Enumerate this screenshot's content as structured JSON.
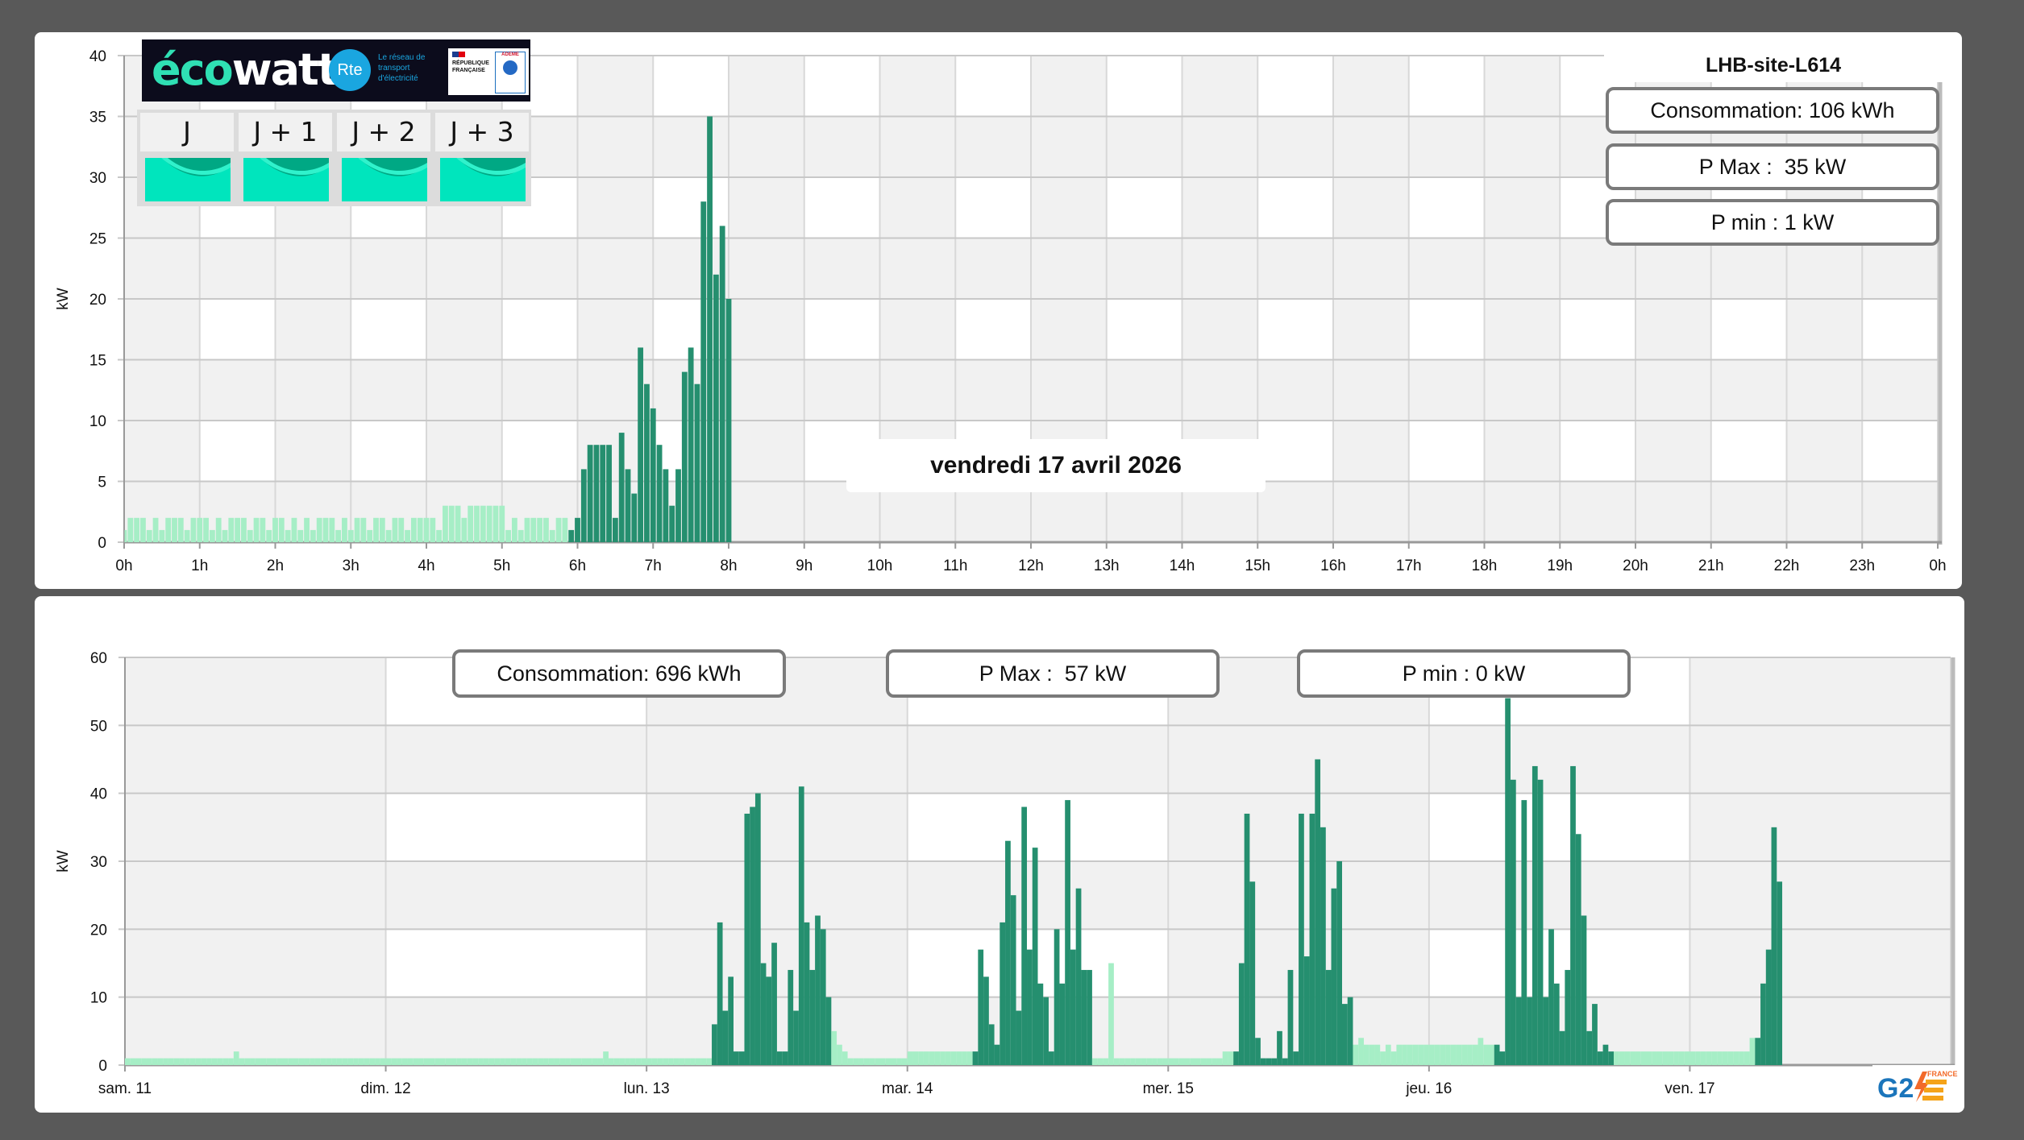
{
  "colors": {
    "background": "#595959",
    "panel": "#ffffff",
    "offpeak": "#a6eec6",
    "peak": "#258f6f",
    "grid_band": "#f1f1f1",
    "grid_line": "#c8c8c8",
    "box_border": "#7a7a7a"
  },
  "ecowatt": {
    "logo_text_1": "éco",
    "logo_text_2": "watt",
    "rte_logo": "Rte",
    "rte_caption": "Le réseau de transport d'électricité",
    "rf_caption": "RÉPUBLIQUE FRANÇAISE",
    "ademe_caption": "ADEME",
    "days": [
      {
        "label": "J",
        "signal": "green"
      },
      {
        "label": "J + 1",
        "signal": "green"
      },
      {
        "label": "J + 2",
        "signal": "green"
      },
      {
        "label": "J + 3",
        "signal": "green"
      }
    ]
  },
  "site": {
    "title": "LHB-site-L614"
  },
  "day_view": {
    "date_label": "vendredi 17 avril 2026",
    "stats": {
      "consumption": "Consommation: 106 kWh",
      "pmax": "P Max :  35 kW",
      "pmin": "P min : 1 kW"
    }
  },
  "week_view": {
    "stats": {
      "consumption": "Consommation: 696 kWh",
      "pmax": "P Max :  57 kW",
      "pmin": "P min : 0 kW"
    }
  },
  "brand": {
    "g2e_logo": "G2E FRANCE"
  },
  "chart_data": [
    {
      "type": "bar",
      "ylabel": "kW",
      "ylim": [
        0,
        40
      ],
      "yticks": [
        0,
        5,
        10,
        15,
        20,
        25,
        30,
        35,
        40
      ],
      "xticks": [
        "0h",
        "1h",
        "2h",
        "3h",
        "4h",
        "5h",
        "6h",
        "7h",
        "8h",
        "9h",
        "10h",
        "11h",
        "12h",
        "13h",
        "14h",
        "15h",
        "16h",
        "17h",
        "18h",
        "19h",
        "20h",
        "21h",
        "22h",
        "23h",
        "0h"
      ],
      "x_start": "00:00",
      "x_step_minutes": 5,
      "peak_start": "05:55",
      "values": [
        1,
        2,
        2,
        2,
        1,
        2,
        1,
        2,
        2,
        2,
        1,
        2,
        2,
        2,
        1,
        2,
        1,
        2,
        2,
        2,
        1,
        2,
        2,
        1,
        2,
        2,
        1,
        2,
        1,
        2,
        1,
        2,
        2,
        2,
        1,
        2,
        1,
        2,
        2,
        1,
        2,
        2,
        1,
        2,
        2,
        1,
        2,
        2,
        2,
        2,
        1,
        3,
        3,
        3,
        2,
        3,
        3,
        3,
        3,
        3,
        3,
        1,
        2,
        1,
        2,
        2,
        2,
        2,
        1,
        2,
        2,
        1,
        2,
        6,
        8,
        8,
        8,
        8,
        2,
        9,
        6,
        4,
        16,
        13,
        11,
        8,
        6,
        3,
        6,
        14,
        16,
        13,
        28,
        35,
        22,
        26,
        20
      ],
      "grid": true
    },
    {
      "type": "bar",
      "ylabel": "kW",
      "ylim": [
        0,
        60
      ],
      "yticks": [
        0,
        10,
        20,
        30,
        40,
        50,
        60
      ],
      "xticks": [
        "sam. 11",
        "dim. 12",
        "lun. 13",
        "mar. 14",
        "mer. 15",
        "jeu. 16",
        "ven. 17"
      ],
      "x_step_minutes": 30,
      "peak_period": {
        "start": "06:00",
        "end": "17:00",
        "days": [
          "lun. 13",
          "mar. 14",
          "mer. 15",
          "jeu. 16",
          "ven. 17"
        ]
      },
      "days": [
        {
          "label": "sam. 11",
          "values": [
            1,
            1,
            1,
            1,
            1,
            1,
            1,
            1,
            1,
            1,
            1,
            1,
            1,
            1,
            1,
            1,
            1,
            1,
            1,
            1,
            2,
            1,
            1,
            1,
            1,
            1,
            1,
            1,
            1,
            1,
            1,
            1,
            1,
            1,
            1,
            1,
            1,
            1,
            1,
            1,
            1,
            1,
            1,
            1,
            1,
            1,
            1,
            1
          ]
        },
        {
          "label": "dim. 12",
          "values": [
            1,
            1,
            1,
            1,
            1,
            1,
            1,
            1,
            1,
            1,
            1,
            1,
            1,
            1,
            1,
            1,
            1,
            1,
            1,
            1,
            1,
            1,
            1,
            1,
            1,
            1,
            1,
            1,
            1,
            1,
            1,
            1,
            1,
            1,
            1,
            1,
            1,
            1,
            1,
            1,
            2,
            1,
            1,
            1,
            1,
            1,
            1,
            1
          ]
        },
        {
          "label": "lun. 13",
          "values": [
            1,
            1,
            1,
            1,
            1,
            1,
            1,
            1,
            1,
            1,
            1,
            1,
            6,
            21,
            8,
            13,
            2,
            2,
            37,
            38,
            40,
            15,
            13,
            18,
            2,
            2,
            14,
            8,
            41,
            21,
            14,
            22,
            20,
            10,
            5,
            3,
            2,
            1,
            1,
            1,
            1,
            1,
            1,
            1,
            1,
            1,
            1,
            1
          ]
        },
        {
          "label": "mar. 14",
          "values": [
            2,
            2,
            2,
            2,
            2,
            2,
            2,
            2,
            2,
            2,
            2,
            2,
            2,
            17,
            13,
            6,
            3,
            21,
            33,
            25,
            8,
            38,
            17,
            32,
            12,
            10,
            2,
            20,
            12,
            39,
            17,
            26,
            14,
            14,
            1,
            1,
            1,
            15,
            1,
            1,
            1,
            1,
            1,
            1,
            1,
            1,
            1,
            1
          ]
        },
        {
          "label": "mer. 15",
          "values": [
            1,
            1,
            1,
            1,
            1,
            1,
            1,
            1,
            1,
            1,
            2,
            2,
            2,
            15,
            37,
            27,
            4,
            1,
            1,
            1,
            5,
            1,
            14,
            2,
            37,
            16,
            37,
            45,
            35,
            14,
            26,
            30,
            9,
            10,
            3,
            4,
            3,
            3,
            3,
            2,
            3,
            2,
            3,
            3,
            3,
            3,
            3,
            3
          ]
        },
        {
          "label": "jeu. 16",
          "values": [
            3,
            3,
            3,
            3,
            3,
            3,
            3,
            3,
            3,
            4,
            3,
            3,
            3,
            2,
            54,
            42,
            10,
            39,
            10,
            44,
            42,
            10,
            20,
            12,
            5,
            14,
            44,
            34,
            22,
            5,
            9,
            2,
            3,
            2,
            2,
            2,
            2,
            2,
            2,
            2,
            2,
            2,
            2,
            2,
            2,
            2,
            2,
            2
          ]
        },
        {
          "label": "ven. 17",
          "values": [
            2,
            2,
            2,
            2,
            2,
            2,
            2,
            2,
            2,
            2,
            2,
            4,
            4,
            12,
            17,
            35,
            27
          ]
        }
      ],
      "grid": true
    }
  ]
}
